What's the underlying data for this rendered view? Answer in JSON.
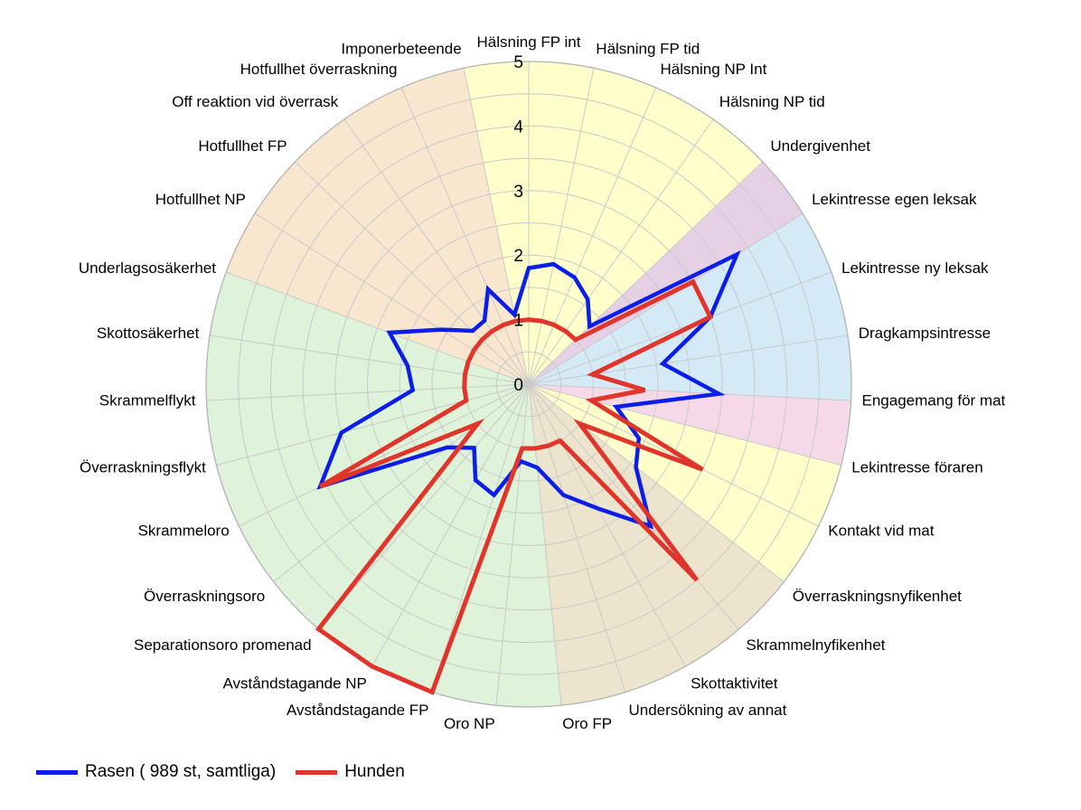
{
  "chart_data": {
    "type": "radar",
    "title": "",
    "rmin": 0,
    "rmax": 5,
    "ticks": [
      "0",
      "1",
      "2",
      "3",
      "4",
      "5"
    ],
    "tick_values": [
      0,
      1,
      2,
      3,
      4,
      5
    ],
    "grid": true,
    "legend_position": "bottom-left",
    "categories": [
      "Hälsning FP int",
      "Hälsning FP tid",
      "Hälsning NP Int",
      "Hälsning NP tid",
      "Undergivenhet",
      "Lekintresse egen leksak",
      "Lekintresse ny leksak",
      "Dragkampsintresse",
      "Engagemang för mat",
      "Lekintresse föraren",
      "Kontakt vid mat",
      "Överraskningsnyfikenhet",
      "Skrammelnyfikenhet",
      "Skottaktivitet",
      "Undersökning av annat",
      "Oro FP",
      "Oro NP",
      "Avståndstagande FP",
      "Avståndstagande NP",
      "Separationsoro promenad",
      "Överraskningsoro",
      "Skrammeloro",
      "Överraskningsflykt",
      "Skrammelflykt",
      "Skottosäkerhet",
      "Underlagsosäkerhet",
      "Hotfullhet NP",
      "Hotfullhet FP",
      "Off reaktion vid överrask",
      "Hotfullhet överraskning",
      "Imponerbeteende"
    ],
    "sectors": [
      {
        "start": 0,
        "end": 4,
        "color": "#ffffcc"
      },
      {
        "start": 4,
        "end": 5,
        "color": "#e6d0e6"
      },
      {
        "start": 5,
        "end": 8,
        "color": "#d5eaf7"
      },
      {
        "start": 8,
        "end": 9,
        "color": "#f5d9e8"
      },
      {
        "start": 9,
        "end": 11,
        "color": "#ffffcc"
      },
      {
        "start": 11,
        "end": 15,
        "color": "#ede4cd"
      },
      {
        "start": 15,
        "end": 25,
        "color": "#dff2da"
      },
      {
        "start": 25,
        "end": 30,
        "color": "#f8e6cf"
      },
      {
        "start": 30,
        "end": 31,
        "color": "#ffffcc"
      }
    ],
    "series": [
      {
        "name": "Rasen ( 989 st, samtliga)",
        "color": "#0a1ee8",
        "values": [
          1.8,
          1.9,
          1.8,
          1.6,
          1.3,
          3.8,
          3.0,
          2.1,
          2.95,
          1.4,
          1.9,
          2.1,
          2.9,
          2.2,
          1.8,
          1.3,
          1.2,
          1.8,
          1.7,
          1.3,
          1.6,
          3.6,
          3.0,
          1.8,
          1.9,
          2.3,
          1.6,
          1.2,
          1.2,
          1.6,
          1.1
        ],
        "line_width": 4.5
      },
      {
        "name": "Hunden",
        "color": "#e1352b",
        "values": [
          1.0,
          1.0,
          1.0,
          1.0,
          1.0,
          3.0,
          3.0,
          1.0,
          1.8,
          1.0,
          3.0,
          1.0,
          4.0,
          1.0,
          1.0,
          1.0,
          1.0,
          5.0,
          5.0,
          5.0,
          1.0,
          3.6,
          1.0,
          1.0,
          1.0,
          1.0,
          1.0,
          1.0,
          1.0,
          1.0,
          1.0
        ],
        "line_width": 5
      }
    ]
  }
}
